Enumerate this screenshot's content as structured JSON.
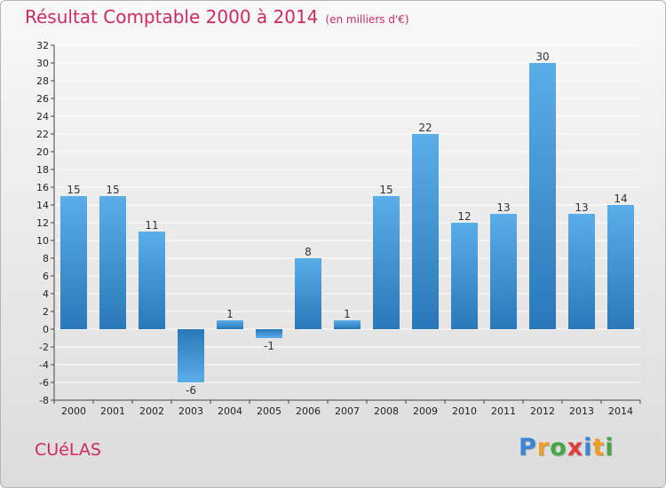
{
  "header": {
    "title": "Résultat Comptable 2000 à 2014",
    "subtitle": "(en milliers d'€)"
  },
  "commune": "CUéLAS",
  "logo": {
    "text": "Proxiti",
    "letters": [
      {
        "ch": "P",
        "color": "#3a86d6"
      },
      {
        "ch": "r",
        "color": "#f0a020"
      },
      {
        "ch": "o",
        "color": "#43a843"
      },
      {
        "ch": "x",
        "color": "#e03a3a"
      },
      {
        "ch": "i",
        "color": "#3a86d6"
      },
      {
        "ch": "t",
        "color": "#f0a020"
      },
      {
        "ch": "i",
        "color": "#43a843"
      }
    ]
  },
  "colors": {
    "bar_top": "#5aaee8",
    "bar_bottom": "#2a78b8",
    "title": "#d02a5e",
    "grid": "#ffffff",
    "axis": "#444444"
  },
  "chart_data": {
    "type": "bar",
    "categories": [
      "2000",
      "2001",
      "2002",
      "2003",
      "2004",
      "2005",
      "2006",
      "2007",
      "2008",
      "2009",
      "2010",
      "2011",
      "2012",
      "2013",
      "2014"
    ],
    "values": [
      15,
      15,
      11,
      -6,
      1,
      -1,
      8,
      1,
      15,
      22,
      12,
      13,
      30,
      13,
      14
    ],
    "data_labels": [
      "15",
      "15",
      "11",
      "-6",
      "1",
      "-1",
      "8",
      "1",
      "15",
      "22",
      "12",
      "13",
      "30",
      "13",
      "14"
    ],
    "title": "Résultat Comptable 2000 à 2014",
    "ylim": [
      -8,
      32
    ],
    "yticks": [
      -8,
      -6,
      -4,
      -2,
      0,
      2,
      4,
      6,
      8,
      10,
      12,
      14,
      16,
      18,
      20,
      22,
      24,
      26,
      28,
      30,
      32
    ],
    "grid": true
  }
}
